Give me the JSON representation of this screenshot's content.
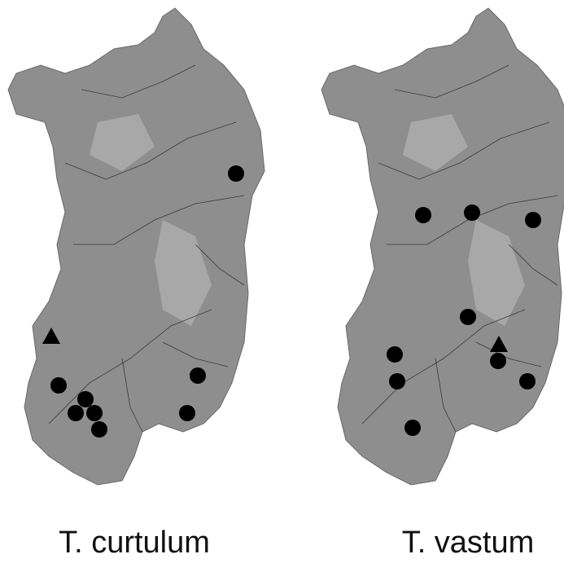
{
  "maps": [
    {
      "label": "T. curtulum"
    },
    {
      "label": "T. vastum"
    }
  ]
}
